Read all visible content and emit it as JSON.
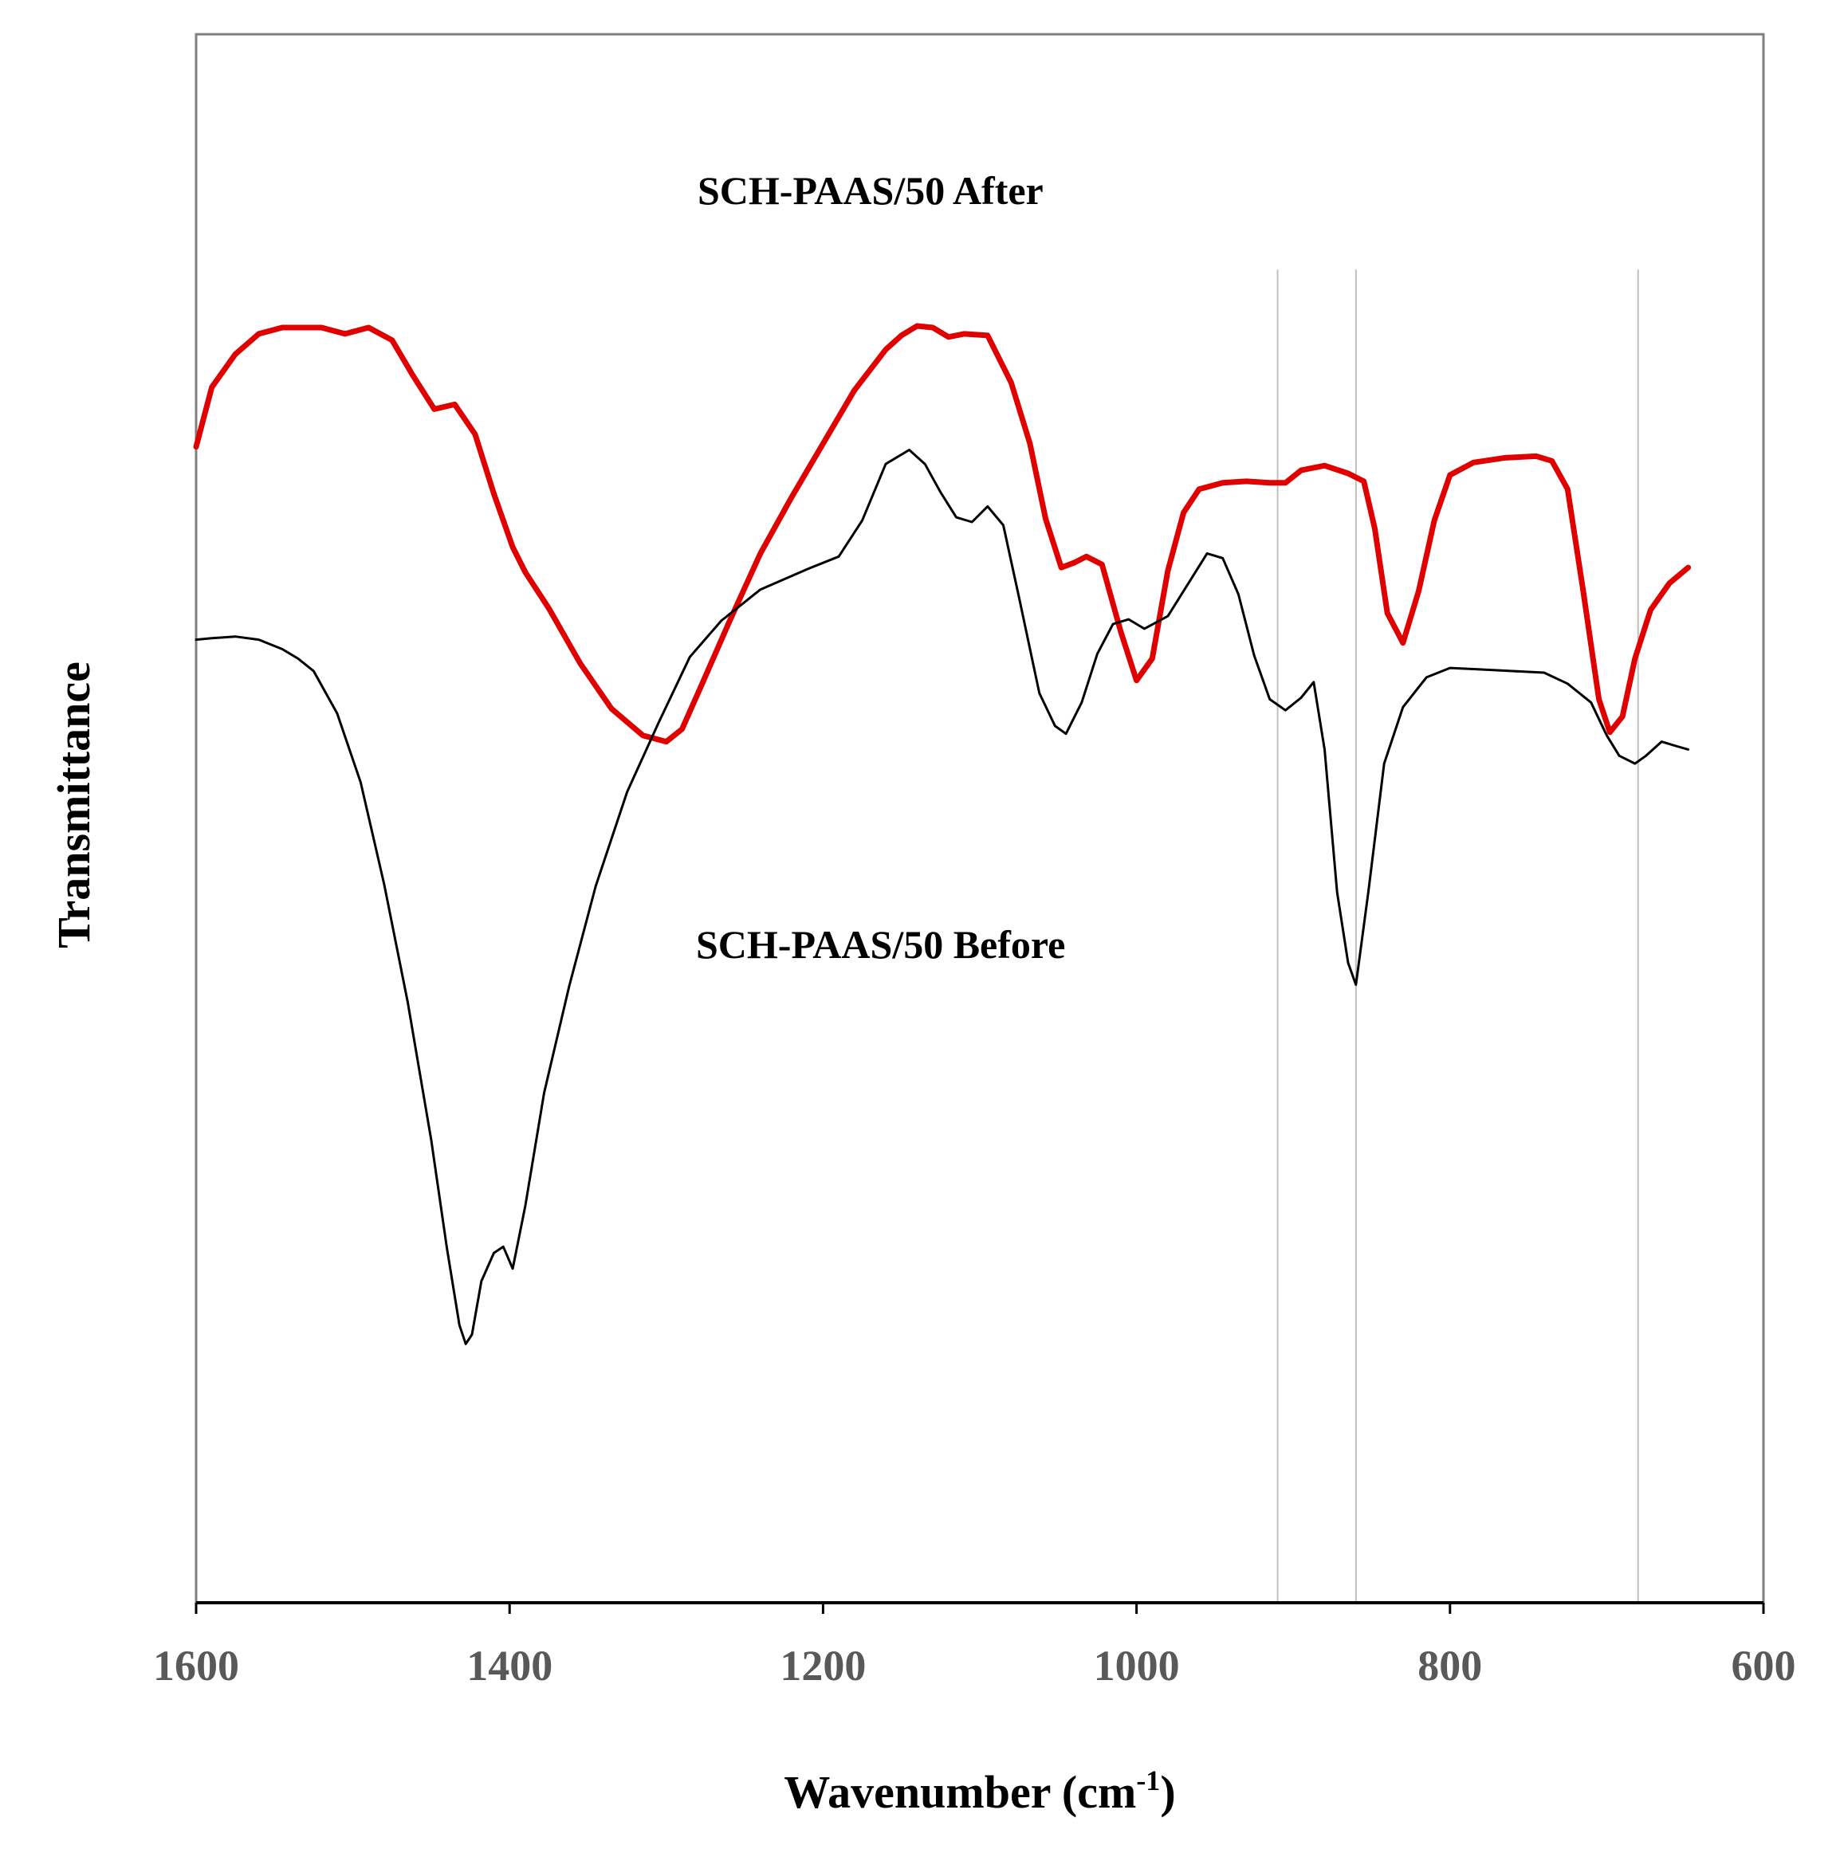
{
  "chart_data": {
    "type": "line",
    "xlabel": "Wavenumber (cm",
    "xlabel_sup": "-1",
    "xlabel_close": ")",
    "ylabel": "Transmittance",
    "xlim": [
      1600,
      600
    ],
    "x_reversed": true,
    "ylim": [
      0,
      100
    ],
    "x_ticks": [
      "1600",
      "1400",
      "1200",
      "1000",
      "800",
      "600"
    ],
    "y_ticks_shown": false,
    "grid": false,
    "reference_lines_x": [
      910,
      860,
      680
    ],
    "reference_line_color": "#bfbfbf",
    "series": [
      {
        "name": "SCH-PAAS/50 After",
        "color": "#e00000",
        "points": [
          [
            1600,
            73.7
          ],
          [
            1590,
            77.5
          ],
          [
            1575,
            79.6
          ],
          [
            1560,
            80.9
          ],
          [
            1545,
            81.3
          ],
          [
            1520,
            81.3
          ],
          [
            1505,
            80.9
          ],
          [
            1490,
            81.3
          ],
          [
            1475,
            80.5
          ],
          [
            1462,
            78.3
          ],
          [
            1448,
            76.1
          ],
          [
            1435,
            76.4
          ],
          [
            1422,
            74.5
          ],
          [
            1410,
            70.7
          ],
          [
            1398,
            67.3
          ],
          [
            1390,
            65.7
          ],
          [
            1375,
            63.4
          ],
          [
            1355,
            59.9
          ],
          [
            1335,
            57.0
          ],
          [
            1315,
            55.3
          ],
          [
            1300,
            54.9
          ],
          [
            1290,
            55.7
          ],
          [
            1278,
            58.4
          ],
          [
            1260,
            62.5
          ],
          [
            1240,
            66.9
          ],
          [
            1220,
            70.5
          ],
          [
            1200,
            73.9
          ],
          [
            1180,
            77.3
          ],
          [
            1160,
            79.9
          ],
          [
            1150,
            80.8
          ],
          [
            1140,
            81.4
          ],
          [
            1130,
            81.3
          ],
          [
            1120,
            80.7
          ],
          [
            1110,
            80.9
          ],
          [
            1095,
            80.8
          ],
          [
            1080,
            77.8
          ],
          [
            1068,
            73.9
          ],
          [
            1058,
            69.1
          ],
          [
            1048,
            66.0
          ],
          [
            1040,
            66.3
          ],
          [
            1032,
            66.7
          ],
          [
            1022,
            66.2
          ],
          [
            1010,
            61.9
          ],
          [
            1000,
            58.8
          ],
          [
            990,
            60.2
          ],
          [
            980,
            65.8
          ],
          [
            970,
            69.5
          ],
          [
            960,
            71.0
          ],
          [
            945,
            71.4
          ],
          [
            930,
            71.5
          ],
          [
            915,
            71.4
          ],
          [
            905,
            71.4
          ],
          [
            895,
            72.2
          ],
          [
            880,
            72.5
          ],
          [
            865,
            72.0
          ],
          [
            855,
            71.5
          ],
          [
            848,
            68.5
          ],
          [
            840,
            63.1
          ],
          [
            830,
            61.2
          ],
          [
            820,
            64.5
          ],
          [
            810,
            69.0
          ],
          [
            800,
            71.9
          ],
          [
            785,
            72.7
          ],
          [
            765,
            73.0
          ],
          [
            745,
            73.1
          ],
          [
            735,
            72.8
          ],
          [
            725,
            71.0
          ],
          [
            715,
            64.5
          ],
          [
            705,
            57.6
          ],
          [
            698,
            55.5
          ],
          [
            690,
            56.5
          ],
          [
            682,
            60.2
          ],
          [
            672,
            63.3
          ],
          [
            660,
            65.0
          ],
          [
            648,
            66.0
          ]
        ]
      },
      {
        "name": "SCH-PAAS/50 Before",
        "color": "#000000",
        "points": [
          [
            1600,
            61.4
          ],
          [
            1590,
            61.5
          ],
          [
            1575,
            61.6
          ],
          [
            1560,
            61.4
          ],
          [
            1545,
            60.8
          ],
          [
            1535,
            60.2
          ],
          [
            1525,
            59.4
          ],
          [
            1510,
            56.7
          ],
          [
            1495,
            52.3
          ],
          [
            1480,
            45.8
          ],
          [
            1465,
            38.3
          ],
          [
            1450,
            29.5
          ],
          [
            1440,
            22.6
          ],
          [
            1432,
            17.7
          ],
          [
            1428,
            16.5
          ],
          [
            1424,
            17.1
          ],
          [
            1418,
            20.5
          ],
          [
            1410,
            22.3
          ],
          [
            1404,
            22.7
          ],
          [
            1398,
            21.3
          ],
          [
            1390,
            25.3
          ],
          [
            1378,
            32.5
          ],
          [
            1362,
            39.3
          ],
          [
            1345,
            45.7
          ],
          [
            1325,
            51.7
          ],
          [
            1305,
            56.1
          ],
          [
            1285,
            60.3
          ],
          [
            1265,
            62.6
          ],
          [
            1240,
            64.6
          ],
          [
            1210,
            65.9
          ],
          [
            1190,
            66.7
          ],
          [
            1175,
            69.0
          ],
          [
            1160,
            72.6
          ],
          [
            1145,
            73.5
          ],
          [
            1135,
            72.6
          ],
          [
            1125,
            70.8
          ],
          [
            1115,
            69.2
          ],
          [
            1105,
            68.9
          ],
          [
            1095,
            69.9
          ],
          [
            1085,
            68.7
          ],
          [
            1075,
            64.1
          ],
          [
            1062,
            58.0
          ],
          [
            1052,
            55.9
          ],
          [
            1045,
            55.4
          ],
          [
            1035,
            57.4
          ],
          [
            1025,
            60.5
          ],
          [
            1015,
            62.4
          ],
          [
            1005,
            62.7
          ],
          [
            995,
            62.1
          ],
          [
            980,
            62.9
          ],
          [
            965,
            65.3
          ],
          [
            955,
            66.9
          ],
          [
            945,
            66.6
          ],
          [
            935,
            64.3
          ],
          [
            925,
            60.4
          ],
          [
            915,
            57.6
          ],
          [
            905,
            56.9
          ],
          [
            895,
            57.7
          ],
          [
            887,
            58.7
          ],
          [
            880,
            54.4
          ],
          [
            872,
            45.3
          ],
          [
            865,
            40.8
          ],
          [
            860,
            39.4
          ],
          [
            852,
            45.4
          ],
          [
            842,
            53.5
          ],
          [
            830,
            57.1
          ],
          [
            815,
            59.0
          ],
          [
            800,
            59.6
          ],
          [
            780,
            59.5
          ],
          [
            760,
            59.4
          ],
          [
            740,
            59.3
          ],
          [
            725,
            58.6
          ],
          [
            710,
            57.4
          ],
          [
            700,
            55.3
          ],
          [
            692,
            54.0
          ],
          [
            682,
            53.5
          ],
          [
            675,
            54.0
          ],
          [
            665,
            54.9
          ],
          [
            655,
            54.6
          ],
          [
            648,
            54.4
          ]
        ]
      }
    ]
  }
}
